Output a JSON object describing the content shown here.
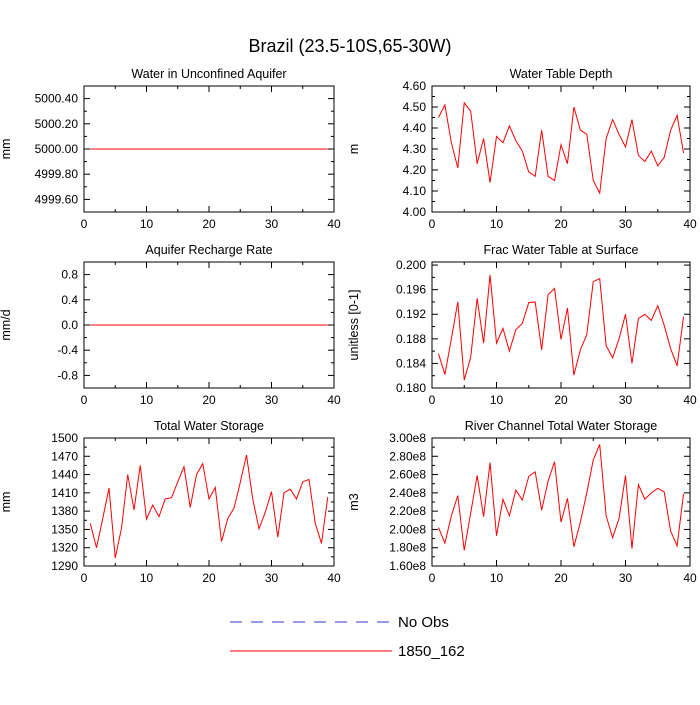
{
  "title": "Brazil (23.5-10S,65-30W)",
  "legend": {
    "entries": [
      {
        "label": "No Obs",
        "color": "#3333cc",
        "dash": true
      },
      {
        "label": "1850_162",
        "color": "#ff0000",
        "dash": false
      }
    ]
  },
  "chart_data": [
    {
      "type": "line",
      "title": "Water in Unconfined Aquifer",
      "ylabel": "mm",
      "xlim": [
        0,
        40
      ],
      "ylim": [
        4999.5,
        5000.5
      ],
      "xticks": [
        "0",
        "10",
        "20",
        "30",
        "40"
      ],
      "yticks": [
        "4999.60",
        "4999.80",
        "5000.00",
        "5000.20",
        "5000.40"
      ],
      "series": [
        {
          "name": "1850_162",
          "color": "#ff0000",
          "x": [
            1,
            39
          ],
          "values": [
            5000,
            5000
          ]
        }
      ]
    },
    {
      "type": "line",
      "title": "Water Table Depth",
      "ylabel": "m",
      "xlim": [
        0,
        40
      ],
      "ylim": [
        4.0,
        4.6
      ],
      "xticks": [
        "0",
        "10",
        "20",
        "30",
        "40"
      ],
      "yticks": [
        "4.00",
        "4.10",
        "4.20",
        "4.30",
        "4.40",
        "4.50",
        "4.60"
      ],
      "series": [
        {
          "name": "1850_162",
          "color": "#ff0000",
          "x": [
            1,
            2,
            3,
            4,
            5,
            6,
            7,
            8,
            9,
            10,
            11,
            12,
            13,
            14,
            15,
            16,
            17,
            18,
            19,
            20,
            21,
            22,
            23,
            24,
            25,
            26,
            27,
            28,
            29,
            30,
            31,
            32,
            33,
            34,
            35,
            36,
            37,
            38,
            39
          ],
          "values": [
            4.45,
            4.51,
            4.33,
            4.21,
            4.52,
            4.48,
            4.23,
            4.35,
            4.14,
            4.36,
            4.33,
            4.41,
            4.34,
            4.29,
            4.19,
            4.17,
            4.39,
            4.17,
            4.15,
            4.32,
            4.23,
            4.5,
            4.39,
            4.37,
            4.15,
            4.09,
            4.35,
            4.44,
            4.37,
            4.31,
            4.44,
            4.27,
            4.24,
            4.29,
            4.22,
            4.26,
            4.39,
            4.46,
            4.28
          ]
        }
      ]
    },
    {
      "type": "line",
      "title": "Aquifer Recharge Rate",
      "ylabel": "mm/d",
      "xlim": [
        0,
        40
      ],
      "ylim": [
        -1.0,
        1.0
      ],
      "xticks": [
        "0",
        "10",
        "20",
        "30",
        "40"
      ],
      "yticks": [
        "-0.8",
        "-0.4",
        "0.0",
        "0.4",
        "0.8"
      ],
      "series": [
        {
          "name": "1850_162",
          "color": "#ff0000",
          "x": [
            1,
            39
          ],
          "values": [
            0,
            0
          ]
        }
      ]
    },
    {
      "type": "line",
      "title": "Frac Water Table at Surface",
      "ylabel": "unitless [0-1]",
      "xlim": [
        0,
        40
      ],
      "ylim": [
        0.18,
        0.2005
      ],
      "xticks": [
        "0",
        "10",
        "20",
        "30",
        "40"
      ],
      "yticks": [
        "0.180",
        "0.184",
        "0.188",
        "0.192",
        "0.196",
        "0.200"
      ],
      "series": [
        {
          "name": "1850_162",
          "color": "#ff0000",
          "x": [
            1,
            2,
            3,
            4,
            5,
            6,
            7,
            8,
            9,
            10,
            11,
            12,
            13,
            14,
            15,
            16,
            17,
            18,
            19,
            20,
            21,
            22,
            23,
            24,
            25,
            26,
            27,
            28,
            29,
            30,
            31,
            32,
            33,
            34,
            35,
            36,
            37,
            38,
            39
          ],
          "values": [
            0.1856,
            0.1822,
            0.188,
            0.194,
            0.1813,
            0.185,
            0.1946,
            0.1873,
            0.1984,
            0.1873,
            0.1897,
            0.186,
            0.1895,
            0.1905,
            0.1939,
            0.194,
            0.1862,
            0.1952,
            0.1962,
            0.1879,
            0.193,
            0.1821,
            0.1862,
            0.1887,
            0.1973,
            0.1978,
            0.1869,
            0.1849,
            0.188,
            0.192,
            0.184,
            0.1913,
            0.192,
            0.191,
            0.1934,
            0.1902,
            0.1864,
            0.1836,
            0.1916
          ]
        }
      ]
    },
    {
      "type": "line",
      "title": "Total Water Storage",
      "ylabel": "mm",
      "xlim": [
        0,
        40
      ],
      "ylim": [
        1290,
        1500
      ],
      "xticks": [
        "0",
        "10",
        "20",
        "30",
        "40"
      ],
      "yticks": [
        "1290",
        "1320",
        "1350",
        "1380",
        "1410",
        "1440",
        "1470",
        "1500"
      ],
      "series": [
        {
          "name": "1850_162",
          "color": "#ff0000",
          "x": [
            1,
            2,
            3,
            4,
            5,
            6,
            7,
            8,
            9,
            10,
            11,
            12,
            13,
            14,
            15,
            16,
            17,
            18,
            19,
            20,
            21,
            22,
            23,
            24,
            25,
            26,
            27,
            28,
            29,
            30,
            31,
            32,
            33,
            34,
            35,
            36,
            37,
            38,
            39
          ],
          "values": [
            1360,
            1320,
            1368,
            1418,
            1303,
            1352,
            1440,
            1382,
            1455,
            1367,
            1390,
            1371,
            1400,
            1402,
            1428,
            1453,
            1386,
            1440,
            1458,
            1400,
            1419,
            1330,
            1368,
            1385,
            1427,
            1472,
            1400,
            1351,
            1378,
            1412,
            1337,
            1410,
            1416,
            1400,
            1428,
            1432,
            1360,
            1327,
            1403
          ]
        }
      ]
    },
    {
      "type": "line",
      "title": "River Channel Total Water Storage",
      "ylabel": "m3",
      "xlim": [
        0,
        40
      ],
      "ylim": [
        160000000,
        300000000
      ],
      "xticks": [
        "0",
        "10",
        "20",
        "30",
        "40"
      ],
      "yticks": [
        "1.60e8",
        "1.80e8",
        "2.00e8",
        "2.20e8",
        "2.40e8",
        "2.60e8",
        "2.80e8",
        "3.00e8"
      ],
      "series": [
        {
          "name": "1850_162",
          "color": "#ff0000",
          "x": [
            1,
            2,
            3,
            4,
            5,
            6,
            7,
            8,
            9,
            10,
            11,
            12,
            13,
            14,
            15,
            16,
            17,
            18,
            19,
            20,
            21,
            22,
            23,
            24,
            25,
            26,
            27,
            28,
            29,
            30,
            31,
            32,
            33,
            34,
            35,
            36,
            37,
            38,
            39
          ],
          "values": [
            202000000,
            185000000,
            215000000,
            237000000,
            177000000,
            218000000,
            259000000,
            214000000,
            273000000,
            193000000,
            233000000,
            215000000,
            243000000,
            232000000,
            258000000,
            263000000,
            221000000,
            253000000,
            274000000,
            208000000,
            234000000,
            181000000,
            208000000,
            240000000,
            276000000,
            293000000,
            215000000,
            191000000,
            212000000,
            259000000,
            179000000,
            249000000,
            233000000,
            240000000,
            245000000,
            241000000,
            198000000,
            182000000,
            239000000
          ]
        }
      ]
    }
  ]
}
